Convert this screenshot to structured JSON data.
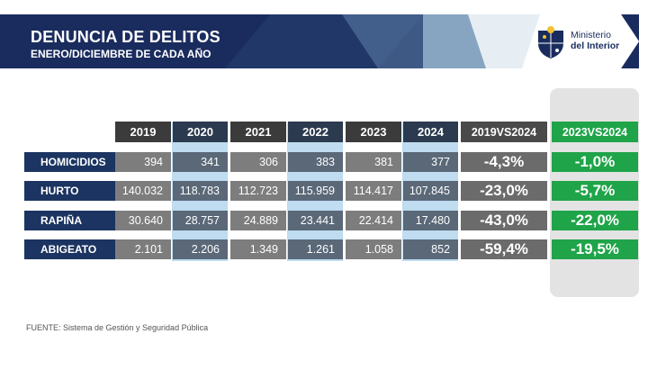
{
  "header": {
    "title": "DENUNCIA DE DELITOS",
    "subtitle": "ENERO/DICIEMBRE DE CADA AÑO",
    "logo_line1": "Ministerio",
    "logo_line2": "del Interior"
  },
  "table": {
    "columns": [
      "2019",
      "2020",
      "2021",
      "2022",
      "2023",
      "2024",
      "2019VS2024",
      "2023VS2024"
    ],
    "rows": [
      {
        "label": "HOMICIDIOS",
        "values": [
          "394",
          "341",
          "306",
          "383",
          "381",
          "377"
        ],
        "pct_2019": "-4,3%",
        "pct_2023": "-1,0%"
      },
      {
        "label": "HURTO",
        "values": [
          "140.032",
          "118.783",
          "112.723",
          "115.959",
          "114.417",
          "107.845"
        ],
        "pct_2019": "-23,0%",
        "pct_2023": "-5,7%"
      },
      {
        "label": "RAPIÑA",
        "values": [
          "30.640",
          "28.757",
          "24.889",
          "23.441",
          "22.414",
          "17.480"
        ],
        "pct_2019": "-43,0%",
        "pct_2023": "-22,0%"
      },
      {
        "label": "ABIGEATO",
        "values": [
          "2.101",
          "2.206",
          "1.349",
          "1.261",
          "1.058",
          "852"
        ],
        "pct_2019": "-59,4%",
        "pct_2023": "-19,5%"
      }
    ]
  },
  "footer": {
    "source": "FUENTE: Sistema de Gestión y Seguridad Pública"
  },
  "colors": {
    "navy": "#1a2c5e",
    "green": "#1fa449",
    "highlight_blue": "#bfdcf0"
  }
}
